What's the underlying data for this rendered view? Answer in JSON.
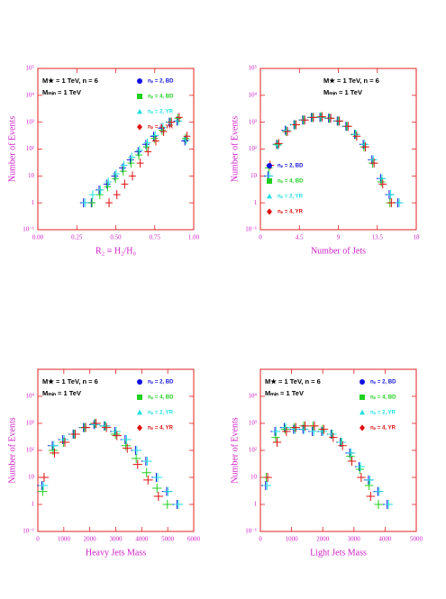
{
  "chart_data": [
    {
      "type": "scatter",
      "log_y": true,
      "legend": "upper right",
      "xlabel": "R₂ ≡ H₂/H₀",
      "ylabel": "Number of Events",
      "annotations": [
        "M★ = 1 TeV, n = 6",
        "Mₘᵢₙ = 1 TeV"
      ],
      "xlim": [
        0,
        1
      ],
      "ylim": [
        0.1,
        100000
      ],
      "xticks": [
        {
          "value": 0,
          "label": "0.00"
        },
        {
          "value": 0.25,
          "label": "0.25"
        },
        {
          "value": 0.5,
          "label": "0.50"
        },
        {
          "value": 0.75,
          "label": "0.75"
        },
        {
          "value": 1,
          "label": "1.00"
        }
      ],
      "yticks": [
        {
          "value": 0.1,
          "label": "10⁻¹"
        },
        1,
        10,
        {
          "value": 100,
          "label": "10²"
        },
        {
          "value": 1000,
          "label": "10³"
        },
        {
          "value": 10000,
          "label": "10⁴"
        },
        {
          "value": 100000,
          "label": "10⁵"
        }
      ],
      "x": [
        0.3,
        0.35,
        0.4,
        0.45,
        0.5,
        0.55,
        0.6,
        0.65,
        0.7,
        0.75,
        0.8,
        0.85,
        0.9,
        0.95
      ],
      "series": [
        {
          "name": "nₚ = 2, BD",
          "color": "#1010e0",
          "marker": "circle",
          "values": [
            1,
            1,
            3,
            5,
            10,
            20,
            40,
            80,
            150,
            300,
            600,
            1000,
            1100,
            200
          ]
        },
        {
          "name": "nₚ = 4, BD",
          "color": "#20d020",
          "marker": "square",
          "values": [
            null,
            1,
            2,
            4,
            8,
            15,
            30,
            60,
            120,
            250,
            500,
            1000,
            1400,
            250
          ]
        },
        {
          "name": "nₚ = 2, YR",
          "color": "#20e0e0",
          "marker": "triangle",
          "values": [
            1,
            2,
            3,
            6,
            12,
            25,
            50,
            90,
            170,
            320,
            650,
            1000,
            1100,
            220
          ]
        },
        {
          "name": "nₚ = 4, YR",
          "color": "#e01010",
          "marker": "diamond",
          "values": [
            null,
            null,
            null,
            1,
            2,
            5,
            10,
            30,
            80,
            200,
            450,
            1000,
            1500,
            300
          ]
        }
      ]
    },
    {
      "type": "scatter",
      "log_y": true,
      "legend": "center left",
      "xlabel": "Number of Jets",
      "ylabel": "Number of Events",
      "annotations": [
        "M★ = 1 TeV, n = 6",
        "Mₘᵢₙ = 1 TeV"
      ],
      "xlim": [
        0,
        18
      ],
      "ylim": [
        0.1,
        100000
      ],
      "xticks": [
        0,
        4.5,
        9,
        13.5,
        18
      ],
      "yticks": [
        {
          "value": 0.1,
          "label": "10⁻¹"
        },
        1,
        10,
        {
          "value": 100,
          "label": "10²"
        },
        {
          "value": 1000,
          "label": "10³"
        },
        {
          "value": 10000,
          "label": "10⁴"
        },
        {
          "value": 100000,
          "label": "10⁵"
        }
      ],
      "x": [
        1,
        2,
        3,
        4,
        5,
        6,
        7,
        8,
        9,
        10,
        11,
        12,
        13,
        14,
        15,
        16
      ],
      "series": [
        {
          "name": "nₚ = 2, BD",
          "color": "#1010e0",
          "marker": "circle",
          "values": [
            10,
            150,
            500,
            800,
            1200,
            1500,
            1500,
            1400,
            1100,
            700,
            350,
            150,
            40,
            8,
            2,
            1
          ]
        },
        {
          "name": "nₚ = 4, BD",
          "color": "#20d020",
          "marker": "square",
          "values": [
            20,
            150,
            450,
            800,
            1200,
            1500,
            1600,
            1400,
            1100,
            700,
            350,
            120,
            30,
            6,
            1,
            null
          ]
        },
        {
          "name": "nₚ = 2, YR",
          "color": "#20e0e0",
          "marker": "triangle",
          "values": [
            10,
            140,
            500,
            800,
            1200,
            1500,
            1500,
            1400,
            1100,
            700,
            350,
            150,
            40,
            8,
            2,
            1
          ]
        },
        {
          "name": "nₚ = 4, YR",
          "color": "#e01010",
          "marker": "diamond",
          "values": [
            25,
            160,
            450,
            800,
            1200,
            1500,
            1600,
            1400,
            1100,
            700,
            300,
            120,
            30,
            5,
            1,
            null
          ]
        }
      ]
    },
    {
      "type": "scatter",
      "log_y": true,
      "legend": "upper right",
      "xlabel": "Heavy Jets Mass",
      "ylabel": "Number of Events",
      "annotations": [
        "M★ = 1 TeV, n = 6",
        "Mₘᵢₙ = 1 TeV"
      ],
      "xlim": [
        0,
        6000
      ],
      "ylim": [
        0.1,
        100000
      ],
      "xticks": [
        0,
        1000,
        2000,
        3000,
        4000,
        5000,
        6000
      ],
      "yticks": [
        {
          "value": 0.1,
          "label": "10⁻¹"
        },
        1,
        10,
        {
          "value": 100,
          "label": "10²"
        },
        {
          "value": 1000,
          "label": "10³"
        },
        {
          "value": 10000,
          "label": "10⁴"
        }
      ],
      "x": [
        200,
        600,
        1000,
        1400,
        1800,
        2200,
        2600,
        3000,
        3400,
        3800,
        4200,
        4600,
        5000,
        5400
      ],
      "series": [
        {
          "name": "nₚ = 2, BD",
          "color": "#1010e0",
          "marker": "circle",
          "values": [
            5,
            150,
            250,
            400,
            700,
            900,
            800,
            500,
            250,
            100,
            40,
            10,
            3,
            1
          ]
        },
        {
          "name": "nₚ = 4, BD",
          "color": "#20d020",
          "marker": "square",
          "values": [
            3,
            100,
            200,
            400,
            700,
            1000,
            800,
            400,
            150,
            50,
            15,
            4,
            1,
            null
          ]
        },
        {
          "name": "nₚ = 2, YR",
          "color": "#20e0e0",
          "marker": "triangle",
          "values": [
            5,
            150,
            250,
            400,
            700,
            900,
            800,
            500,
            250,
            100,
            40,
            10,
            3,
            1
          ]
        },
        {
          "name": "nₚ = 4, YR",
          "color": "#e01010",
          "marker": "diamond",
          "values": [
            10,
            80,
            200,
            400,
            700,
            1000,
            700,
            350,
            120,
            30,
            8,
            2,
            null,
            null
          ]
        }
      ]
    },
    {
      "type": "scatter",
      "log_y": true,
      "legend": "upper right",
      "xlabel": "Light Jets Mass",
      "ylabel": "Number of Events",
      "annotations": [
        "M★ = 1 TeV, n = 6",
        "Mₘᵢₙ = 1 TeV"
      ],
      "xlim": [
        0,
        5000
      ],
      "ylim": [
        0.1,
        100000
      ],
      "xticks": [
        0,
        1000,
        2000,
        3000,
        4000,
        5000
      ],
      "yticks": [
        {
          "value": 0.1,
          "label": "10⁻¹"
        },
        1,
        10,
        {
          "value": 100,
          "label": "10²"
        },
        {
          "value": 1000,
          "label": "10³"
        },
        {
          "value": 10000,
          "label": "10⁴"
        }
      ],
      "x": [
        200,
        500,
        800,
        1100,
        1400,
        1700,
        2000,
        2300,
        2600,
        2900,
        3200,
        3500,
        3800,
        4100
      ],
      "series": [
        {
          "name": "nₚ = 2, BD",
          "color": "#1010e0",
          "marker": "circle",
          "values": [
            5,
            500,
            700,
            600,
            600,
            500,
            500,
            400,
            200,
            80,
            25,
            8,
            3,
            1
          ]
        },
        {
          "name": "nₚ = 4, BD",
          "color": "#20d020",
          "marker": "square",
          "values": [
            10,
            300,
            600,
            700,
            800,
            800,
            600,
            400,
            200,
            60,
            20,
            5,
            1,
            null
          ]
        },
        {
          "name": "nₚ = 2, YR",
          "color": "#20e0e0",
          "marker": "triangle",
          "values": [
            5,
            500,
            700,
            600,
            600,
            500,
            500,
            400,
            200,
            80,
            25,
            8,
            3,
            1
          ]
        },
        {
          "name": "nₚ = 4, YR",
          "color": "#e01010",
          "marker": "diamond",
          "values": [
            10,
            200,
            500,
            700,
            800,
            800,
            600,
            300,
            150,
            40,
            10,
            2,
            null,
            null
          ]
        }
      ]
    }
  ]
}
